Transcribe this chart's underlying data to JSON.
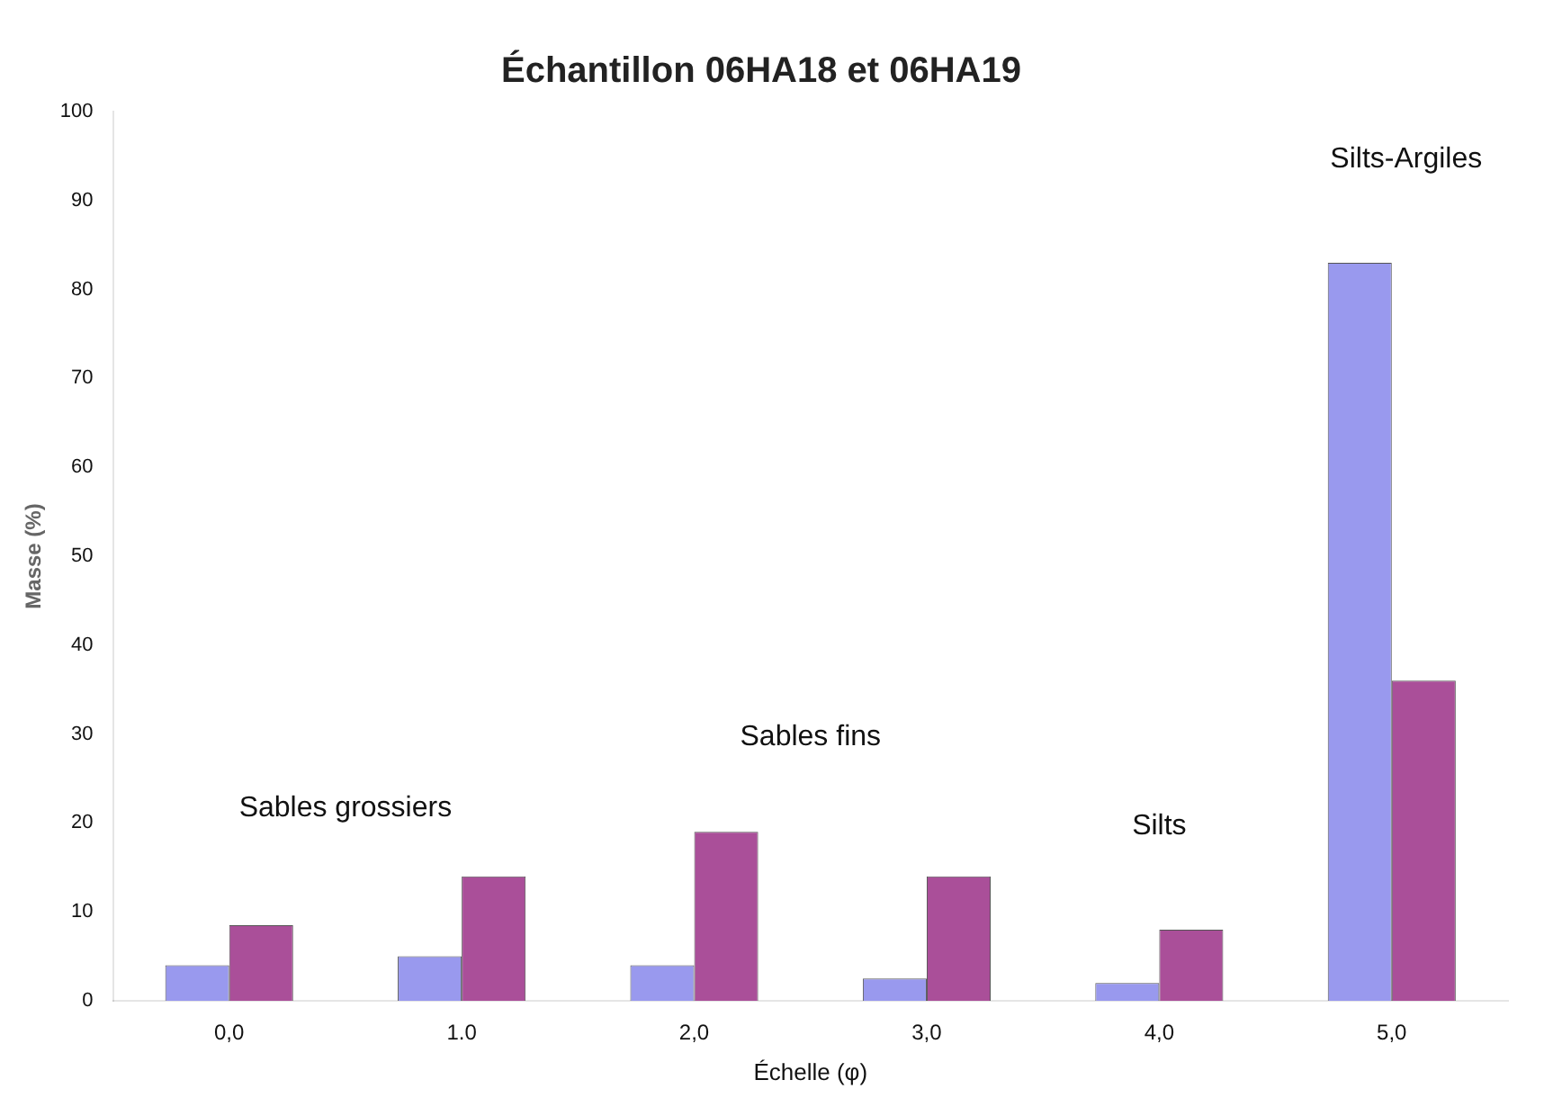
{
  "chart_data": {
    "type": "bar",
    "title": "Échantillon 06HA18 et 06HA19",
    "xlabel": "Échelle (φ)",
    "ylabel": "Masse (%)",
    "categories": [
      "0,0",
      "1.0",
      "2,0",
      "3,0",
      "4,0",
      "5,0"
    ],
    "series": [
      {
        "color": "#9999ee",
        "values": [
          4,
          5,
          4,
          2.5,
          2,
          83
        ]
      },
      {
        "color": "#aa4f99",
        "values": [
          8.5,
          14,
          19,
          14,
          8,
          36
        ]
      }
    ],
    "ylim": [
      0,
      100
    ],
    "yticks": [
      0,
      10,
      20,
      30,
      40,
      50,
      60,
      70,
      80,
      90,
      100
    ],
    "annotations": [
      "Sables grossiers",
      "Sables fins",
      "Silts",
      "Silts-Argiles"
    ],
    "grid": false,
    "legend": false
  }
}
